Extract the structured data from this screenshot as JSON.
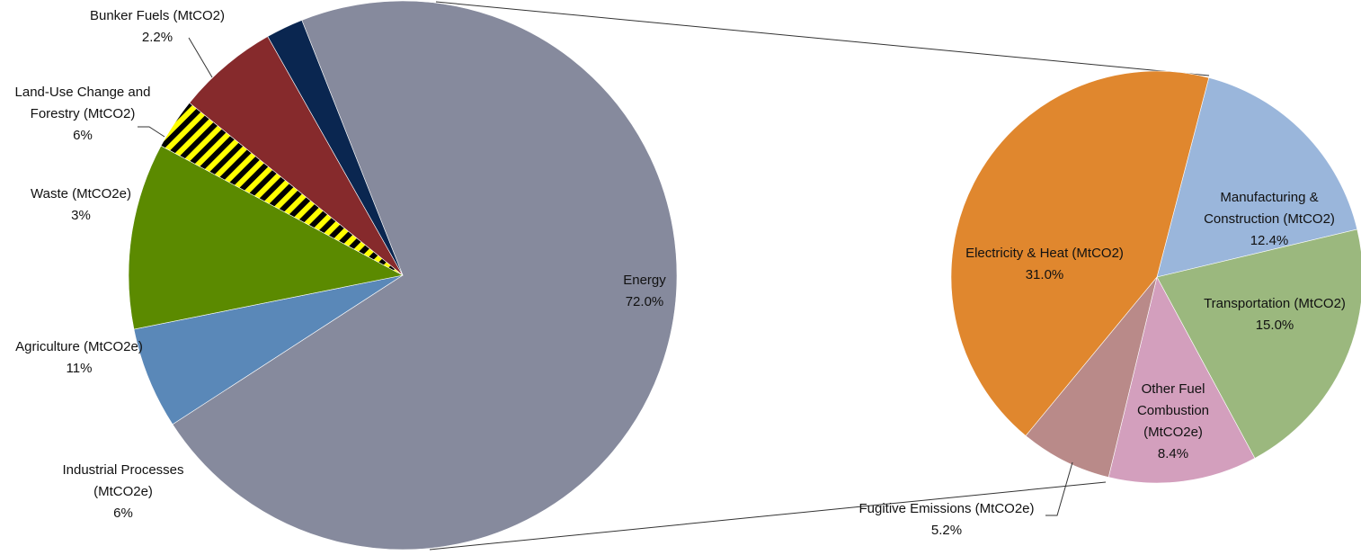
{
  "chart_data": [
    {
      "type": "pie",
      "slices": [
        {
          "label": "Energy",
          "value": 72.0,
          "value_text": "72.0%",
          "color": "#868a9d"
        },
        {
          "label": "Industrial Processes (MtCO2e)",
          "value": 6,
          "value_text": "6%",
          "color": "#5a88b8"
        },
        {
          "label": "Agriculture (MtCO2e)",
          "value": 11,
          "value_text": "11%",
          "color": "#5b8a00"
        },
        {
          "label": "Waste (MtCO2e)",
          "value": 3,
          "value_text": "3%",
          "color": "#ffff00",
          "pattern": "diagonal-stripes-black"
        },
        {
          "label": "Land-Use Change and Forestry (MtCO2)",
          "value": 6,
          "value_text": "6%",
          "color": "#862a2c"
        },
        {
          "label": "Bunker Fuels (MtCO2)",
          "value": 2.2,
          "value_text": "2.2%",
          "color": "#0a2650"
        }
      ]
    },
    {
      "type": "pie",
      "breakdown_of": "Energy",
      "slices": [
        {
          "label": "Manufacturing & Construction (MtCO2)",
          "value": 12.4,
          "value_text": "12.4%",
          "color": "#9ab6db"
        },
        {
          "label": "Transportation (MtCO2)",
          "value": 15.0,
          "value_text": "15.0%",
          "color": "#9bb87e"
        },
        {
          "label": "Other Fuel Combustion (MtCO2e)",
          "value": 8.4,
          "value_text": "8.4%",
          "color": "#d39fbd"
        },
        {
          "label": "Fugitive Emissions (MtCO2e)",
          "value": 5.2,
          "value_text": "5.2%",
          "color": "#b98a89"
        },
        {
          "label": "Electricity & Heat (MtCO2)",
          "value": 31.0,
          "value_text": "31.0%",
          "color": "#e0872e"
        }
      ]
    }
  ]
}
